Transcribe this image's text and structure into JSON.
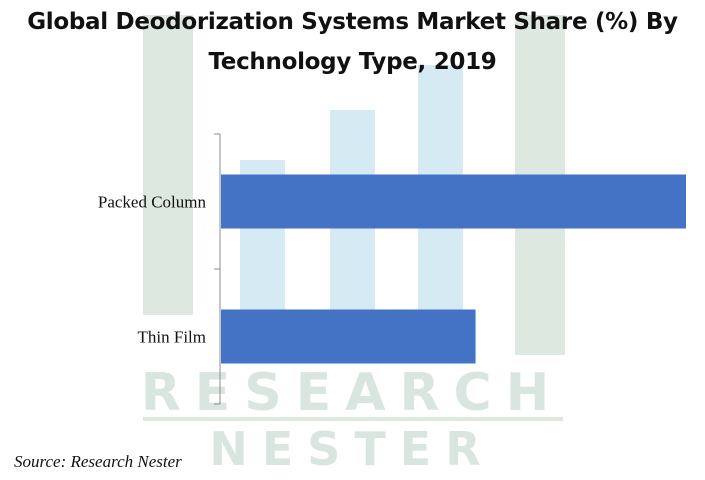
{
  "chart_data": {
    "type": "bar",
    "orientation": "horizontal",
    "title": "Global Deodorization Systems Market Share (%) By Technology Type, 2019",
    "categories": [
      "Packed Column",
      "Thin Film"
    ],
    "values": [
      62,
      34
    ],
    "xlim": [
      0,
      62
    ],
    "xlabel": "",
    "ylabel": "",
    "grid": false,
    "legend": "none",
    "bar_color": "#4472C4"
  },
  "source": "Source: Research Nester",
  "watermark": {
    "line1": "RESEARCH",
    "line2": "NESTER",
    "color": "#d9e6df",
    "accent": "#d6eaf3"
  }
}
